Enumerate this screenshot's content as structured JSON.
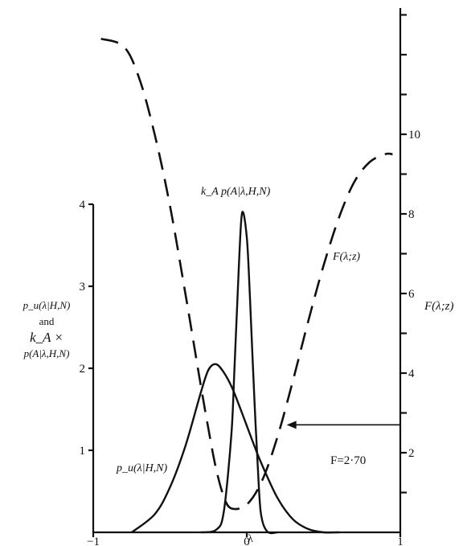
{
  "chart_data": {
    "type": "line",
    "xlabel": "λ",
    "ylabel_left": [
      "p_u(λ|H,N)",
      "and",
      "k_A ×",
      "p(A|λ,H,N)"
    ],
    "ylabel_right": "F(λ;z)",
    "xlim": [
      -1,
      1
    ],
    "ylim_left": [
      0,
      4
    ],
    "ylim_right": [
      0,
      12
    ],
    "x_ticks": [
      "−1",
      "0",
      "1"
    ],
    "y_left_ticks": [
      "1",
      "2",
      "3",
      "4"
    ],
    "y_right_ticks": [
      "2",
      "4",
      "6",
      "8",
      "10"
    ],
    "series": [
      {
        "name": "p_u(λ|H,N)",
        "axis": "left",
        "style": "solid",
        "x": [
          -0.75,
          -0.6,
          -0.5,
          -0.4,
          -0.3,
          -0.25,
          -0.2,
          -0.15,
          -0.1,
          -0.05,
          0.0,
          0.05,
          0.1,
          0.2,
          0.3,
          0.4,
          0.5,
          0.6
        ],
        "y": [
          0.0,
          0.22,
          0.55,
          1.05,
          1.7,
          1.98,
          2.05,
          1.95,
          1.78,
          1.55,
          1.3,
          1.05,
          0.82,
          0.42,
          0.16,
          0.04,
          0.0,
          0.0
        ]
      },
      {
        "name": "k_A p(A|λ,H,N)",
        "axis": "left",
        "style": "solid",
        "x": [
          -0.3,
          -0.2,
          -0.15,
          -0.1,
          -0.08,
          -0.05,
          -0.03,
          0.0,
          0.02,
          0.05,
          0.08,
          0.1,
          0.14,
          0.2
        ],
        "y": [
          0.0,
          0.03,
          0.25,
          1.2,
          2.0,
          3.3,
          3.9,
          3.6,
          2.9,
          1.6,
          0.5,
          0.15,
          0.0,
          0.0
        ]
      },
      {
        "name": "F(λ;z)",
        "axis": "right",
        "style": "dashed",
        "x": [
          -0.95,
          -0.8,
          -0.7,
          -0.6,
          -0.5,
          -0.4,
          -0.3,
          -0.25,
          -0.2,
          -0.15,
          -0.1,
          0.0,
          0.1,
          0.2,
          0.3,
          0.4,
          0.5,
          0.6,
          0.7,
          0.8,
          0.9,
          0.95
        ],
        "y": [
          12.4,
          12.2,
          11.4,
          10.0,
          8.2,
          6.0,
          3.7,
          2.6,
          1.6,
          0.9,
          0.6,
          0.7,
          1.3,
          2.4,
          3.8,
          5.3,
          6.7,
          7.9,
          8.8,
          9.3,
          9.5,
          9.5
        ]
      }
    ],
    "annotations": [
      {
        "text": "k_A p(A|λ,H,N)"
      },
      {
        "text": "F(λ;z)"
      },
      {
        "text": "F=2·70",
        "arrow": true,
        "y_right": 2.7
      },
      {
        "text": "p_u(λ|H,N)"
      }
    ]
  }
}
